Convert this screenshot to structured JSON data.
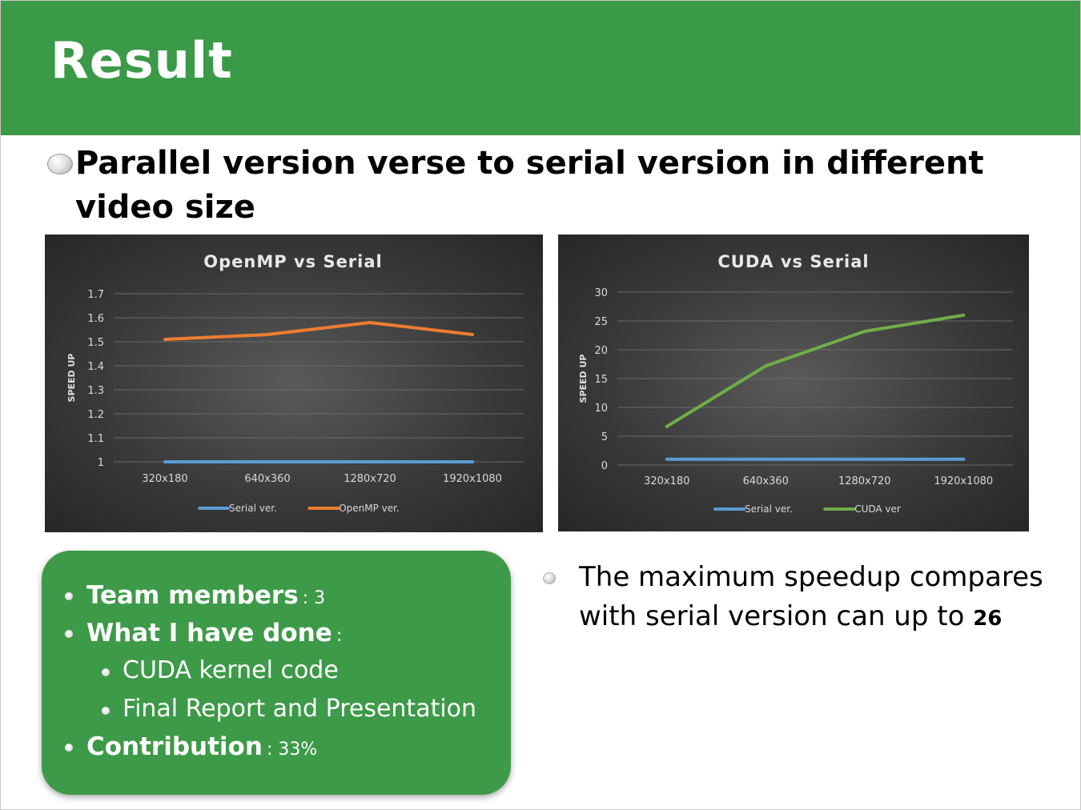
{
  "slide": {
    "title": "Result",
    "main_bullet": "Parallel version verse to serial version in different video size"
  },
  "colors": {
    "header_green": "#3b9a47",
    "serial_blue": "#5b9bd5",
    "openmp_orange": "#ed7d31",
    "cuda_green": "#70ad47"
  },
  "chart_data": [
    {
      "type": "line",
      "title": "OpenMP vs Serial",
      "xlabel": "",
      "ylabel": "SPEED UP",
      "categories": [
        "320x180",
        "640x360",
        "1280x720",
        "1920x1080"
      ],
      "ylim": [
        1,
        1.7
      ],
      "yticks": [
        "1",
        "1.1",
        "1.2",
        "1.3",
        "1.4",
        "1.5",
        "1.6",
        "1.7"
      ],
      "grid": true,
      "legend": "bottom",
      "series": [
        {
          "name": "Serial ver.",
          "color": "#5b9bd5",
          "values": [
            1,
            1,
            1,
            1
          ]
        },
        {
          "name": "OpenMP ver.",
          "color": "#ed7d31",
          "values": [
            1.51,
            1.53,
            1.58,
            1.53
          ]
        }
      ]
    },
    {
      "type": "line",
      "title": "CUDA vs Serial",
      "xlabel": "",
      "ylabel": "SPEED UP",
      "categories": [
        "320x180",
        "640x360",
        "1280x720",
        "1920x1080"
      ],
      "ylim": [
        0,
        30
      ],
      "yticks": [
        "0",
        "5",
        "10",
        "15",
        "20",
        "25",
        "30"
      ],
      "grid": true,
      "legend": "bottom",
      "series": [
        {
          "name": "Serial ver.",
          "color": "#5b9bd5",
          "values": [
            1,
            1,
            1,
            1
          ]
        },
        {
          "name": "CUDA ver",
          "color": "#70ad47",
          "values": [
            6.7,
            17.2,
            23.2,
            26
          ]
        }
      ]
    }
  ],
  "info_box": {
    "team_label": "Team members",
    "team_value": ": 3",
    "done_label": "What I have done",
    "done_value": ":",
    "done_items": [
      "CUDA kernel code",
      "Final Report and Presentation"
    ],
    "contribution_label": "Contribution",
    "contribution_value": ": 33%"
  },
  "note": {
    "text": "The maximum speedup compares with serial version can up to",
    "value": "26"
  }
}
